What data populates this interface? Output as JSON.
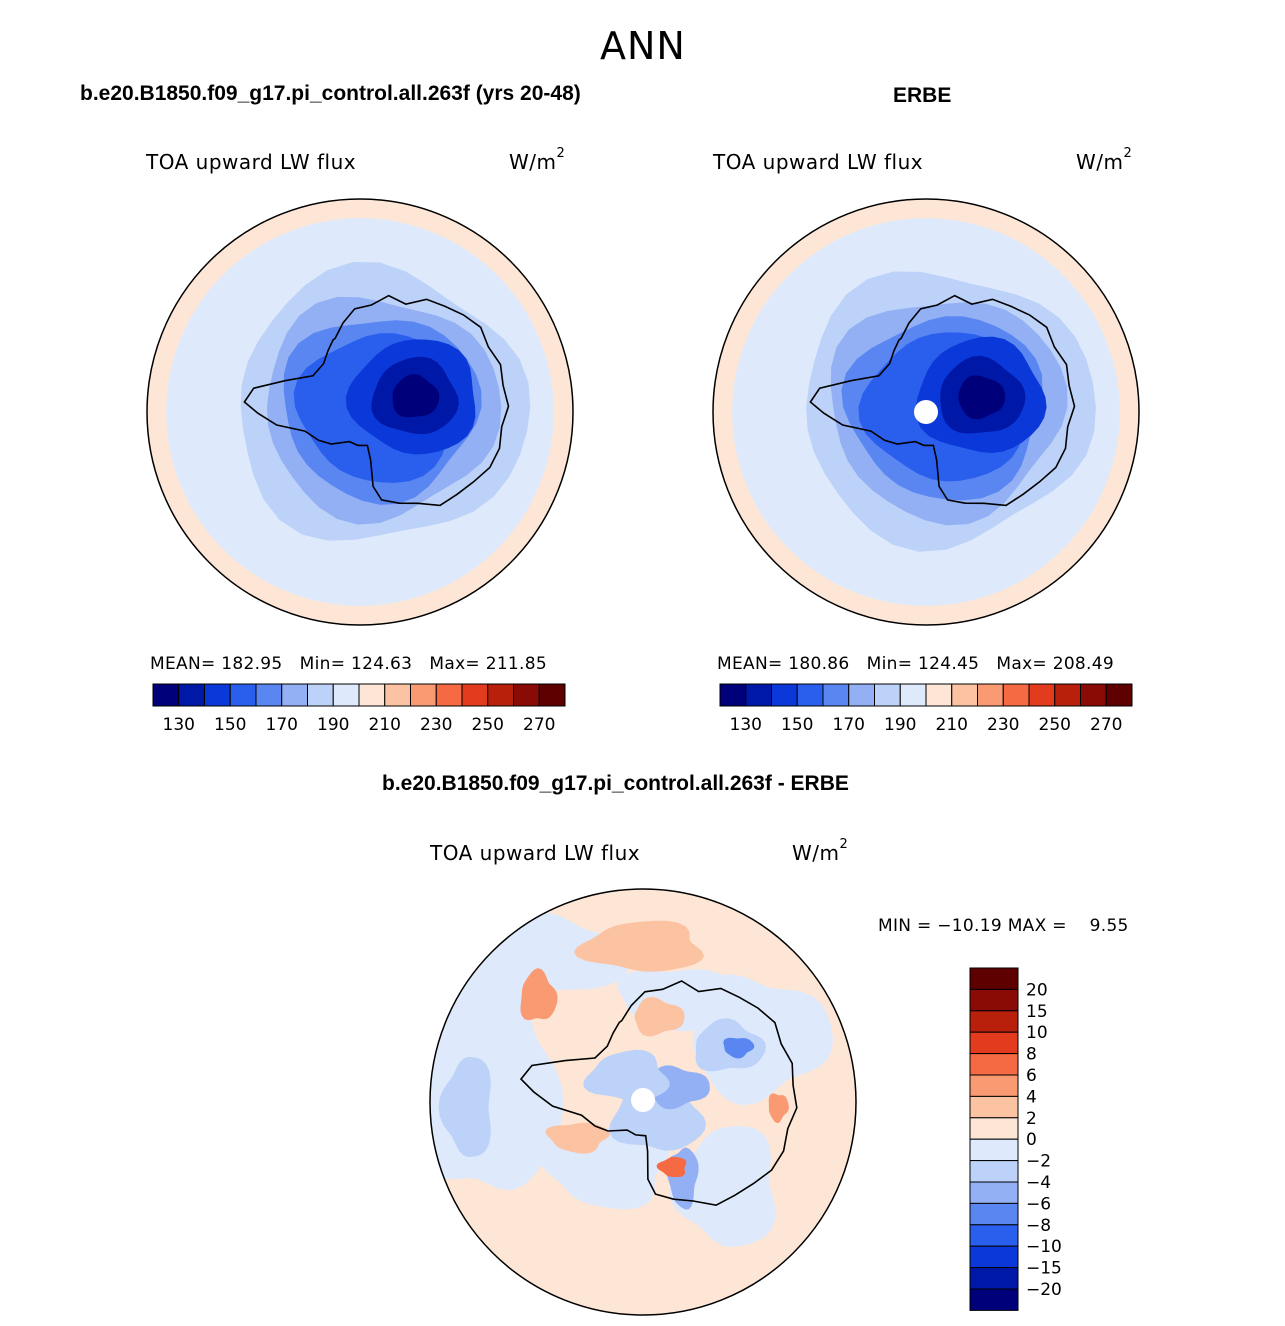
{
  "season": "ANN",
  "bottom_title": "b.e20.B1850.f09_g17.pi_control.all.263f - ERBE",
  "chart_data": [
    {
      "type": "heatmap",
      "projection": "south-polar-stereographic",
      "title": "b.e20.B1850.f09_g17.pi_control.all.263f (yrs 20-48)",
      "variable": "TOA upward LW flux",
      "units": "W/m",
      "units_exp": "2",
      "stats": {
        "mean_label": "MEAN=",
        "mean": "182.95",
        "min_label": "Min=",
        "min": "124.63",
        "max_label": "Max=",
        "max": "211.85"
      },
      "levels": [
        130,
        140,
        150,
        160,
        170,
        180,
        190,
        200,
        210,
        220,
        230,
        240,
        250,
        260,
        270
      ],
      "colorbar_labels": [
        "130",
        "150",
        "170",
        "190",
        "210",
        "230",
        "250",
        "270"
      ],
      "colors": [
        "#00007a",
        "#0018a8",
        "#0b38d8",
        "#2a5fee",
        "#5a86f2",
        "#92b0f3",
        "#bdd2f8",
        "#deeafb",
        "#fde6d6",
        "#fcc3a3",
        "#f99a72",
        "#f56a42",
        "#e23b1e",
        "#b8200c",
        "#8a0a06",
        "#5e0000"
      ],
      "missing_pole": false
    },
    {
      "type": "heatmap",
      "projection": "south-polar-stereographic",
      "title": "ERBE",
      "variable": "TOA upward LW flux",
      "units": "W/m",
      "units_exp": "2",
      "stats": {
        "mean_label": "MEAN=",
        "mean": "180.86",
        "min_label": "Min=",
        "min": "124.45",
        "max_label": "Max=",
        "max": "208.49"
      },
      "levels": [
        130,
        140,
        150,
        160,
        170,
        180,
        190,
        200,
        210,
        220,
        230,
        240,
        250,
        260,
        270
      ],
      "colorbar_labels": [
        "130",
        "150",
        "170",
        "190",
        "210",
        "230",
        "250",
        "270"
      ],
      "colors": [
        "#00007a",
        "#0018a8",
        "#0b38d8",
        "#2a5fee",
        "#5a86f2",
        "#92b0f3",
        "#bdd2f8",
        "#deeafb",
        "#fde6d6",
        "#fcc3a3",
        "#f99a72",
        "#f56a42",
        "#e23b1e",
        "#b8200c",
        "#8a0a06",
        "#5e0000"
      ],
      "missing_pole": true
    },
    {
      "type": "heatmap",
      "projection": "south-polar-stereographic",
      "title": "b.e20.B1850.f09_g17.pi_control.all.263f - ERBE",
      "variable": "TOA upward LW flux",
      "units": "W/m",
      "units_exp": "2",
      "stats": {
        "min_label": "MIN =",
        "min": "−10.19",
        "max_label": "MAX =",
        "max": "9.55"
      },
      "levels": [
        -20,
        -15,
        -10,
        -8,
        -6,
        -4,
        -2,
        0,
        2,
        4,
        6,
        8,
        10,
        15,
        20
      ],
      "colorbar_labels": [
        "20",
        "15",
        "10",
        "8",
        "6",
        "4",
        "2",
        "0",
        "−2",
        "−4",
        "−6",
        "−8",
        "−10",
        "−15",
        "−20"
      ],
      "colors": [
        "#00007a",
        "#0018a8",
        "#0b38d8",
        "#2a5fee",
        "#5a86f2",
        "#92b0f3",
        "#bdd2f8",
        "#deeafb",
        "#fde6d6",
        "#fcc3a3",
        "#f99a72",
        "#f56a42",
        "#e23b1e",
        "#b8200c",
        "#8a0a06",
        "#5e0000"
      ],
      "missing_pole": true
    }
  ]
}
